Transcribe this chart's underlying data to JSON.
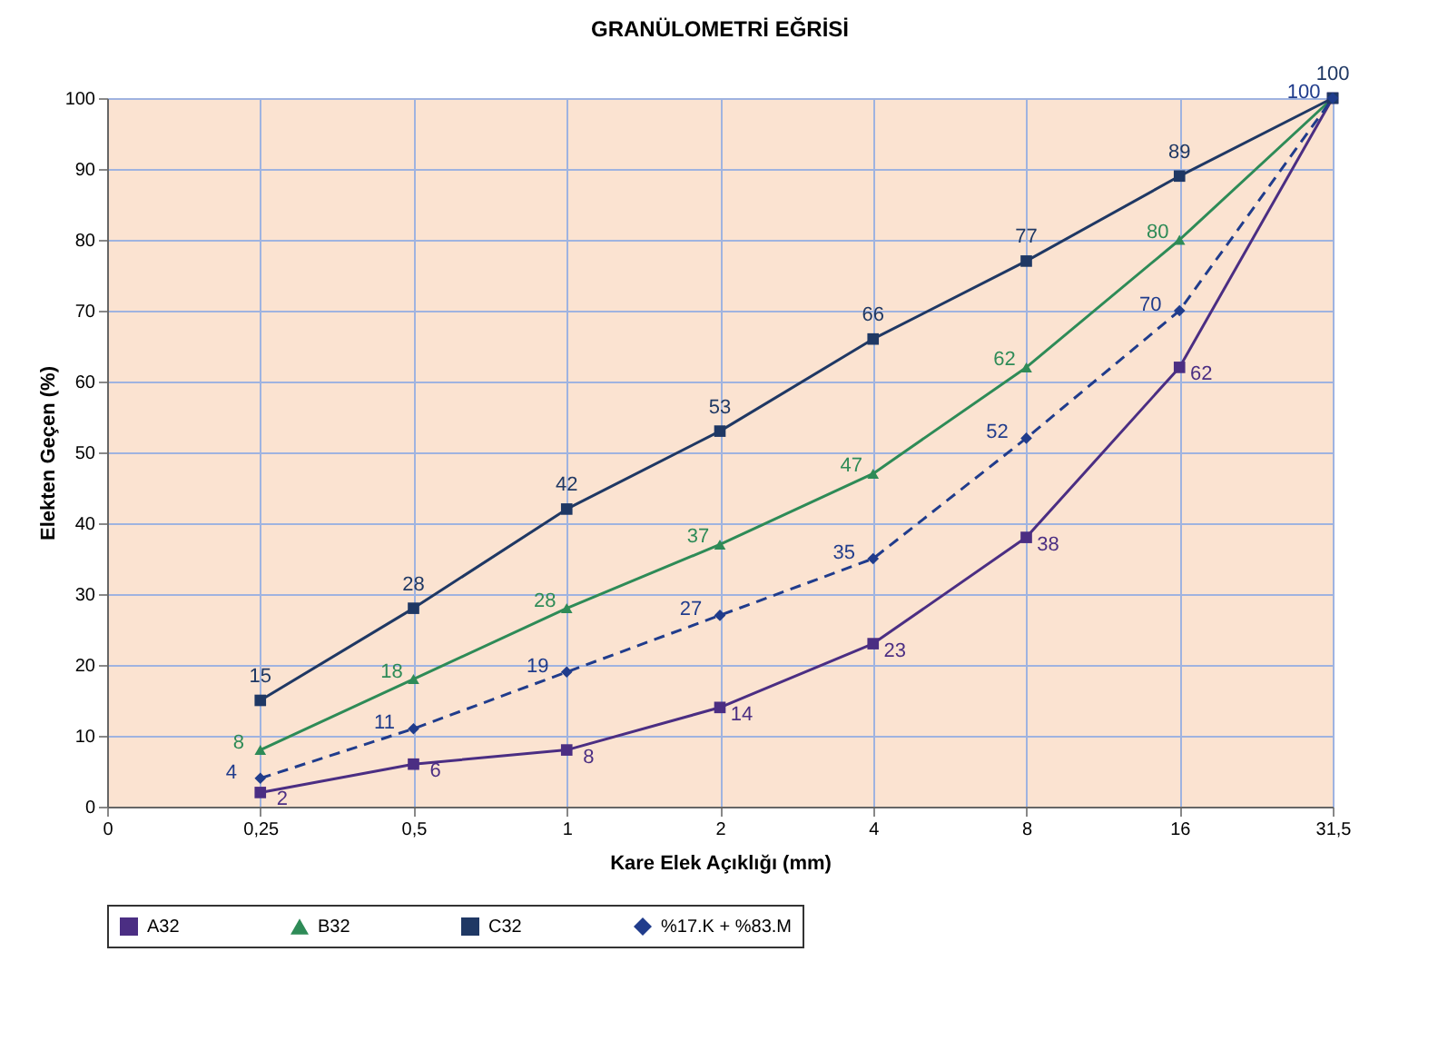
{
  "chart_data": {
    "type": "line",
    "title": "GRANÜLOMETRİ EĞRİSİ",
    "xlabel": "Kare Elek Açıklığı (mm)",
    "ylabel": "Elekten Geçen (%)",
    "categories": [
      "0",
      "0,25",
      "0,5",
      "1",
      "2",
      "4",
      "8",
      "16",
      "31,5"
    ],
    "series": [
      {
        "name": "A32",
        "color": "#4b2e83",
        "marker": "square",
        "line_style": "solid",
        "values": [
          null,
          2,
          6,
          8,
          14,
          23,
          38,
          62,
          100
        ],
        "value_labels": [
          null,
          "2",
          "6",
          "8",
          "14",
          "23",
          "38",
          "62",
          null
        ]
      },
      {
        "name": "B32",
        "color": "#2e8b57",
        "marker": "triangle",
        "line_style": "solid",
        "values": [
          null,
          8,
          18,
          28,
          37,
          47,
          62,
          80,
          100
        ],
        "value_labels": [
          null,
          "8",
          "18",
          "28",
          "37",
          "47",
          "62",
          "80",
          null
        ]
      },
      {
        "name": "C32",
        "color": "#1f3864",
        "marker": "square",
        "line_style": "solid",
        "values": [
          null,
          15,
          28,
          42,
          53,
          66,
          77,
          89,
          100
        ],
        "value_labels": [
          null,
          "15",
          "28",
          "42",
          "53",
          "66",
          "77",
          "89",
          "100"
        ]
      },
      {
        "name": "%17.K + %83.M",
        "color": "#203c8c",
        "marker": "diamond",
        "line_style": "dashed",
        "values": [
          null,
          4,
          11,
          19,
          27,
          35,
          52,
          70,
          100
        ],
        "value_labels": [
          null,
          "4",
          "11",
          "19",
          "27",
          "35",
          "52",
          "70",
          "100"
        ]
      }
    ],
    "ylim": [
      0,
      100
    ],
    "yticks": [
      0,
      10,
      20,
      30,
      40,
      50,
      60,
      70,
      80,
      90,
      100
    ],
    "grid": true,
    "legend": "bottom"
  }
}
